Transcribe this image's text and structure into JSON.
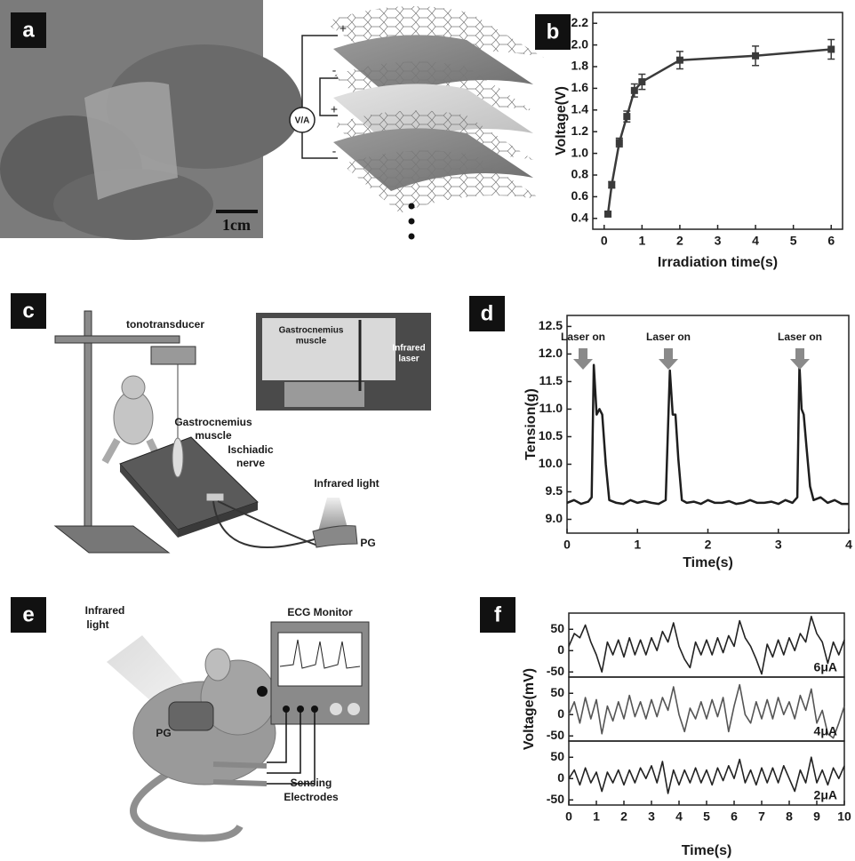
{
  "panel_labels": [
    "a",
    "b",
    "c",
    "d",
    "e",
    "f"
  ],
  "figure_a": {
    "scale_bar": "1cm",
    "signs": [
      "+",
      "-",
      "+",
      "-"
    ],
    "meter": "V/A"
  },
  "figure_c": {
    "tonotransducer": "tonotransducer",
    "muscle": [
      "Gastrocnemius",
      "muscle"
    ],
    "nerve": [
      "Ischiadic",
      "nerve"
    ],
    "light": "Infrared light",
    "device": "PG",
    "inset_muscle": [
      "Gastrocnemius",
      "muscle"
    ],
    "inset_laser": [
      "Infrared",
      "laser"
    ]
  },
  "figure_e": {
    "light": [
      "Infrared",
      "light"
    ],
    "monitor": "ECG Monitor",
    "device": "PG",
    "electrodes": [
      "Sensing",
      "Electrodes"
    ]
  },
  "chart_data": [
    {
      "type": "line",
      "xlabel": "Irradiation time(s)",
      "ylabel": "Voltage(V)",
      "color": "#3a3a3a",
      "markers": true,
      "x": [
        0.1,
        0.2,
        0.4,
        0.6,
        0.8,
        1,
        2,
        4,
        6
      ],
      "values": [
        0.44,
        0.71,
        1.1,
        1.34,
        1.58,
        1.66,
        1.86,
        1.9,
        1.96
      ],
      "errors": [
        0.02,
        0.03,
        0.04,
        0.05,
        0.06,
        0.07,
        0.08,
        0.09,
        0.09
      ],
      "xlim": [
        -0.3,
        6.3
      ],
      "xticks": [
        0,
        1,
        2,
        3,
        4,
        5,
        6
      ],
      "ylim": [
        0.3,
        2.3
      ],
      "yticks": [
        0.4,
        0.6,
        0.8,
        {
          "value": 1,
          "label": "1.0"
        },
        1.2,
        1.4,
        1.6,
        1.8,
        {
          "value": 2,
          "label": "2.0"
        },
        2.2
      ]
    },
    {
      "type": "line",
      "xlabel": "Time(s)",
      "ylabel": "Tension(g)",
      "color": "#1e1e1e",
      "annotations": [
        "Laser on",
        "Laser on",
        "Laser on"
      ],
      "x": [
        0,
        0.1,
        0.2,
        0.3,
        0.35,
        0.38,
        0.42,
        0.46,
        0.5,
        0.55,
        0.6,
        0.7,
        0.8,
        0.9,
        1.0,
        1.1,
        1.2,
        1.3,
        1.4,
        1.43,
        1.46,
        1.5,
        1.54,
        1.58,
        1.63,
        1.7,
        1.8,
        1.9,
        2.0,
        2.1,
        2.2,
        2.3,
        2.4,
        2.5,
        2.6,
        2.7,
        2.8,
        2.9,
        3.0,
        3.1,
        3.2,
        3.27,
        3.3,
        3.33,
        3.36,
        3.4,
        3.45,
        3.5,
        3.6,
        3.7,
        3.8,
        3.9,
        4.0
      ],
      "values": [
        9.3,
        9.35,
        9.28,
        9.32,
        9.4,
        11.8,
        10.9,
        11.0,
        10.9,
        10.0,
        9.35,
        9.3,
        9.28,
        9.35,
        9.3,
        9.33,
        9.3,
        9.28,
        9.35,
        10.5,
        11.7,
        10.9,
        10.9,
        10.1,
        9.35,
        9.3,
        9.32,
        9.28,
        9.35,
        9.3,
        9.3,
        9.33,
        9.28,
        9.3,
        9.35,
        9.3,
        9.3,
        9.32,
        9.28,
        9.35,
        9.3,
        9.4,
        11.8,
        11.0,
        10.9,
        10.3,
        9.6,
        9.35,
        9.4,
        9.3,
        9.35,
        9.28,
        9.28
      ],
      "xlim": [
        0,
        4
      ],
      "xticks": [
        0,
        1,
        2,
        3,
        4
      ],
      "ylim": [
        8.75,
        12.7
      ],
      "yticks": [
        {
          "value": 9,
          "label": "9.0"
        },
        9.5,
        {
          "value": 10,
          "label": "10.0"
        },
        10.5,
        {
          "value": 11,
          "label": "11.0"
        },
        11.5,
        {
          "value": 12,
          "label": "12.0"
        },
        12.5
      ]
    },
    {
      "type": "line",
      "xlabel": "Time(s)",
      "ylabel": "Voltage(mV)",
      "x": [
        0,
        0.2,
        0.4,
        0.6,
        0.8,
        1,
        1.2,
        1.4,
        1.6,
        1.8,
        2,
        2.2,
        2.4,
        2.6,
        2.8,
        3,
        3.2,
        3.4,
        3.6,
        3.8,
        4,
        4.2,
        4.4,
        4.6,
        4.8,
        5,
        5.2,
        5.4,
        5.6,
        5.8,
        6,
        6.2,
        6.4,
        6.6,
        6.8,
        7,
        7.2,
        7.4,
        7.6,
        7.8,
        8,
        8.2,
        8.4,
        8.6,
        8.8,
        9,
        9.2,
        9.4,
        9.6,
        9.8,
        10
      ],
      "series": [
        {
          "name": "6μA",
          "color": "#222222",
          "values": [
            10,
            40,
            30,
            60,
            20,
            -10,
            -50,
            20,
            -10,
            25,
            -15,
            30,
            -10,
            25,
            -10,
            30,
            0,
            45,
            20,
            65,
            10,
            -20,
            -40,
            20,
            -10,
            25,
            -10,
            30,
            -5,
            35,
            10,
            70,
            30,
            10,
            -20,
            -55,
            15,
            -15,
            25,
            -10,
            30,
            0,
            40,
            20,
            80,
            40,
            20,
            -30,
            20,
            -10,
            25
          ]
        },
        {
          "name": "4μA",
          "color": "#555555",
          "values": [
            0,
            30,
            -20,
            40,
            -10,
            35,
            -45,
            20,
            -15,
            30,
            -10,
            45,
            -5,
            30,
            -10,
            35,
            -5,
            40,
            10,
            65,
            0,
            -40,
            15,
            -10,
            30,
            -10,
            35,
            -5,
            40,
            -40,
            20,
            70,
            0,
            -20,
            30,
            -10,
            35,
            -10,
            40,
            0,
            30,
            -10,
            45,
            10,
            60,
            -20,
            10,
            -45,
            -55,
            -20,
            20
          ]
        },
        {
          "name": "2μA",
          "color": "#222222",
          "values": [
            0,
            20,
            -15,
            25,
            -10,
            15,
            -30,
            15,
            -10,
            20,
            -15,
            20,
            -10,
            25,
            0,
            30,
            -10,
            40,
            -35,
            20,
            -15,
            20,
            -10,
            25,
            -10,
            20,
            -15,
            25,
            -5,
            30,
            0,
            45,
            -10,
            20,
            -15,
            25,
            -10,
            25,
            -10,
            30,
            0,
            -30,
            20,
            -10,
            50,
            -10,
            20,
            -15,
            25,
            0,
            30
          ]
        }
      ],
      "xlim": [
        0,
        10
      ],
      "xticks": [
        0,
        1,
        2,
        3,
        4,
        5,
        6,
        7,
        8,
        9,
        10
      ],
      "ylim": [
        -62,
        88
      ],
      "yticks": [
        -50,
        0,
        50
      ]
    }
  ]
}
